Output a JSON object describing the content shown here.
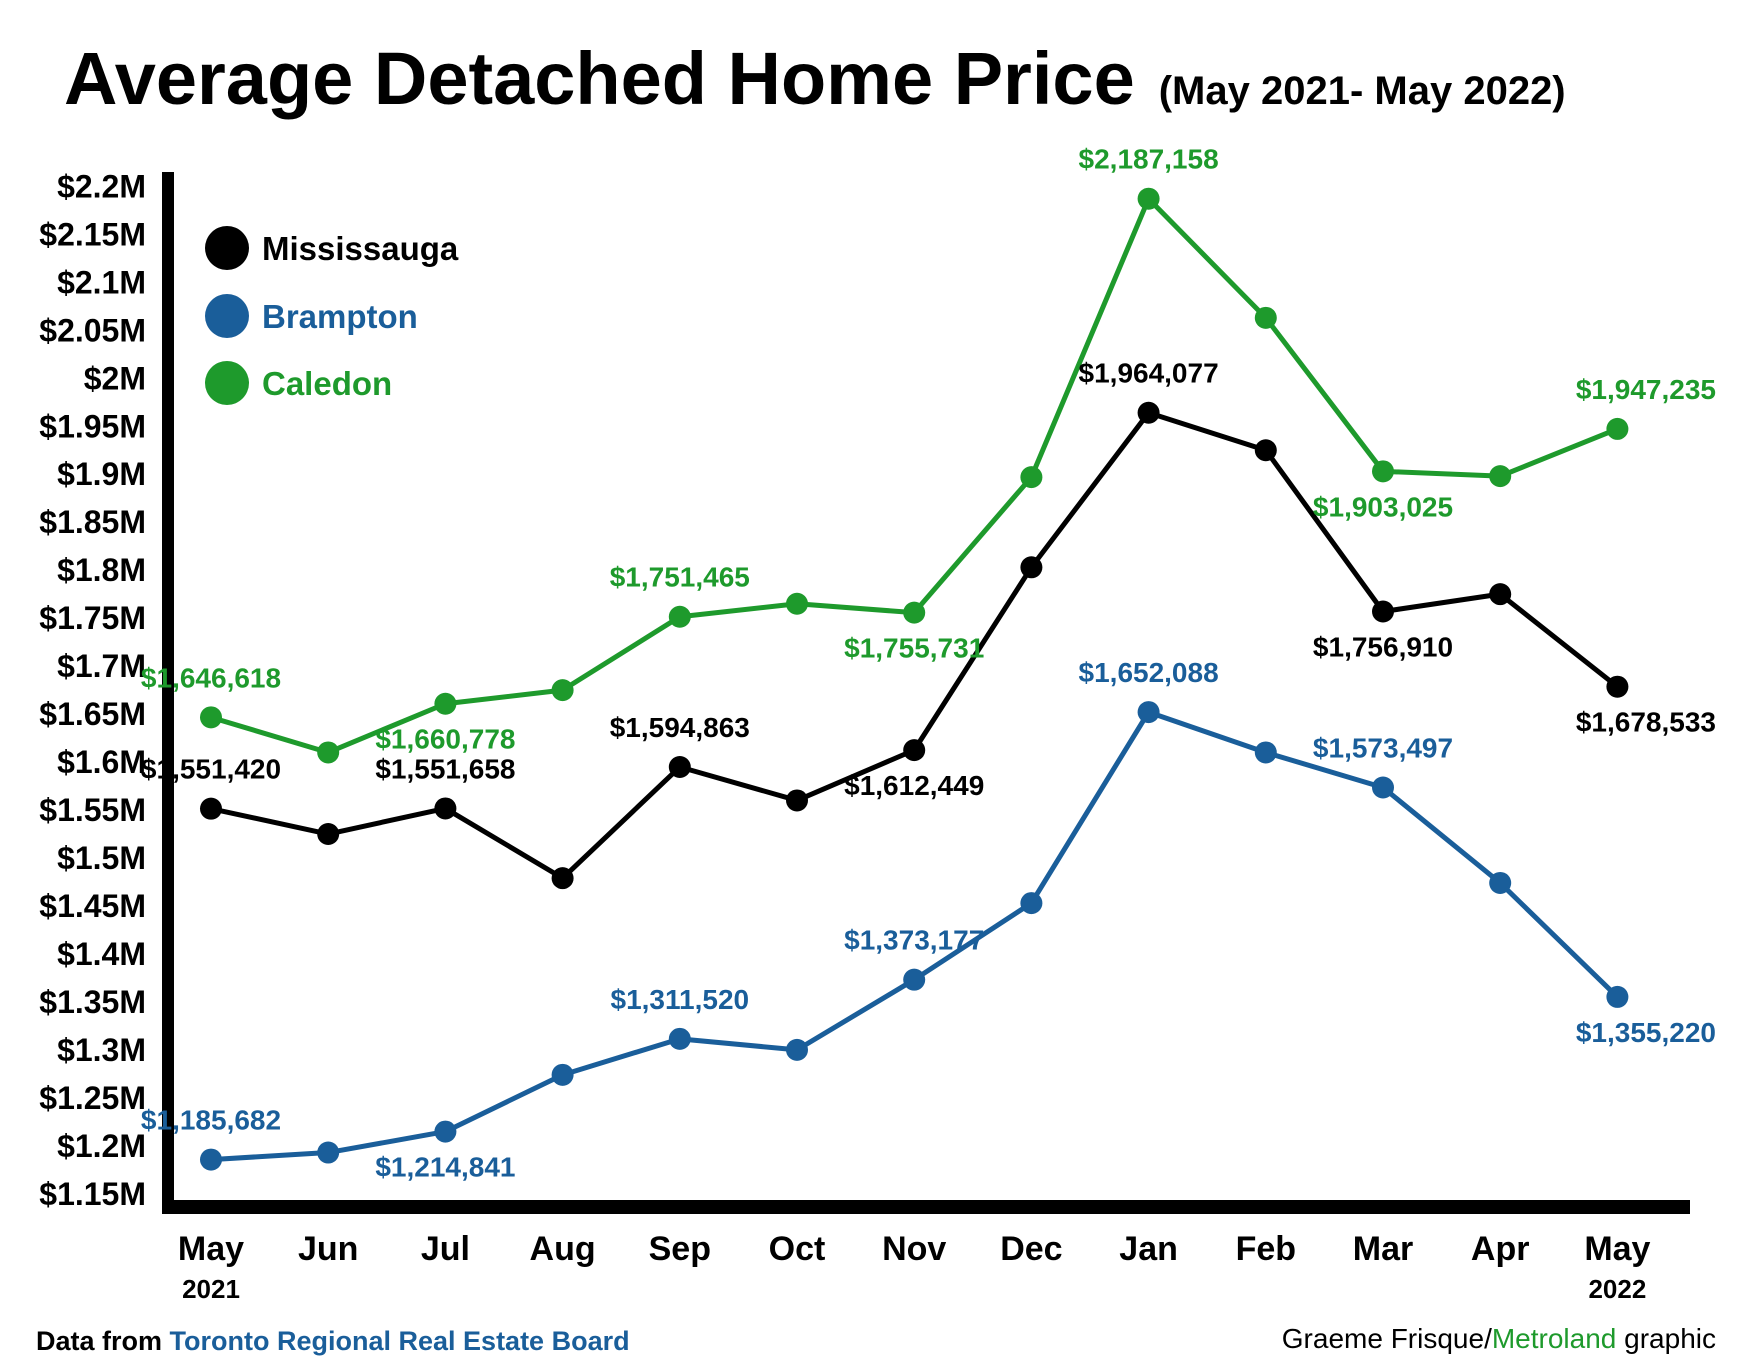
{
  "colors": {
    "mississauga": "#000000",
    "brampton": "#1a5e9a",
    "caledon": "#1e9a2c",
    "axis": "#000000"
  },
  "chart_data": {
    "type": "line",
    "title": "Average Detached Home Price",
    "subtitle": "(May 2021- May 2022)",
    "categories": [
      "May",
      "Jun",
      "Jul",
      "Aug",
      "Sep",
      "Oct",
      "Nov",
      "Dec",
      "Jan",
      "Feb",
      "Mar",
      "Apr",
      "May"
    ],
    "category_years": [
      "2021",
      "",
      "",
      "",
      "",
      "",
      "",
      "",
      "",
      "",
      "",
      "",
      "2022"
    ],
    "ylim": [
      1130000,
      2215000
    ],
    "yticks": [
      1150000,
      1200000,
      1250000,
      1300000,
      1350000,
      1400000,
      1450000,
      1500000,
      1550000,
      1600000,
      1650000,
      1700000,
      1750000,
      1800000,
      1850000,
      1900000,
      1950000,
      2000000,
      2050000,
      2100000,
      2150000,
      2200000
    ],
    "ytick_labels": [
      "$1.15M",
      "$1.2M",
      "$1.25M",
      "$1.3M",
      "$1.35M",
      "$1.4M",
      "$1.45M",
      "$1.5M",
      "$1.55M",
      "$1.6M",
      "$1.65M",
      "$1.7M",
      "$1.75M",
      "$1.8M",
      "$1.85M",
      "$1.9M",
      "$1.95M",
      "$2M",
      "$2.05M",
      "$2.1M",
      "$2.15M",
      "$2.2M"
    ],
    "grid": false,
    "legend_position": "top-left",
    "series": [
      {
        "name": "Mississauga",
        "color_key": "mississauga",
        "values": [
          1551420,
          1525000,
          1551658,
          1479000,
          1594863,
          1560000,
          1612449,
          1803000,
          1964077,
          1925000,
          1756910,
          1775000,
          1678533
        ],
        "labels": [
          "$1,551,420",
          "",
          "$1,551,658",
          "",
          "$1,594,863",
          "",
          "$1,612,449",
          "",
          "$1,964,077",
          "",
          "$1,756,910",
          "",
          "$1,678,533"
        ]
      },
      {
        "name": "Brampton",
        "color_key": "brampton",
        "values": [
          1185682,
          1193000,
          1214841,
          1274000,
          1311520,
          1300000,
          1373177,
          1453000,
          1652088,
          1610000,
          1573497,
          1474000,
          1355220
        ],
        "labels": [
          "$1,185,682",
          "",
          "$1,214,841",
          "",
          "$1,311,520",
          "",
          "$1,373,177",
          "",
          "$1,652,088",
          "",
          "$1,573,497",
          "",
          "$1,355,220"
        ]
      },
      {
        "name": "Caledon",
        "color_key": "caledon",
        "values": [
          1646618,
          1610000,
          1660778,
          1675000,
          1751465,
          1765000,
          1755731,
          1897000,
          2187158,
          2063000,
          1903025,
          1898000,
          1947235
        ],
        "labels": [
          "$1,646,618",
          "",
          "$1,660,778",
          "",
          "$1,751,465",
          "",
          "$1,755,731",
          "",
          "$2,187,158",
          "",
          "$1,903,025",
          "",
          "$1,947,235"
        ]
      }
    ]
  },
  "footer": {
    "source_prefix": "Data from ",
    "source_name": "Toronto Regional Real Estate Board",
    "credit_name": "Graeme Frisque/",
    "credit_org": "Metroland",
    "credit_suffix": " graphic"
  }
}
